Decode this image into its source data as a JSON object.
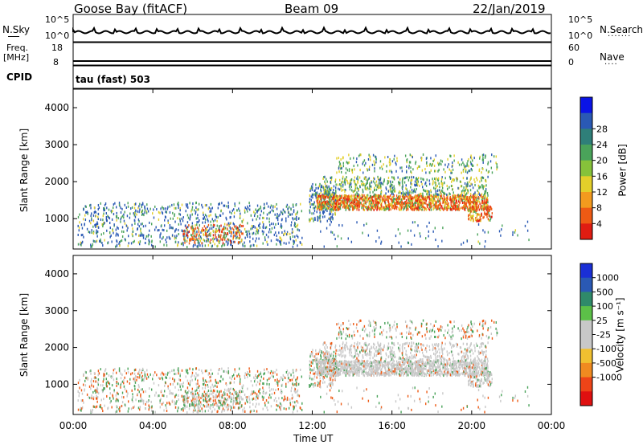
{
  "header": {
    "station": "Goose Bay (fitACF)",
    "beam": "Beam 09",
    "date": "22/Jan/2019"
  },
  "nsky": {
    "label": "N.Sky",
    "tick_top": "10^5",
    "tick_bottom": "10^0",
    "right_top": "10^5",
    "right_bottom": "10^0",
    "right_label": "N.Search"
  },
  "freq": {
    "label_line1": "Freq.",
    "label_line2": "[MHz]",
    "tick_top": "18",
    "tick_bottom": "8",
    "right_top": "60",
    "right_bottom": "0",
    "right_label": "Nave"
  },
  "cpid": {
    "label": "CPID",
    "value": "tau (fast) 503"
  },
  "time_axis": {
    "label": "Time UT",
    "ticks": [
      "00:00",
      "04:00",
      "08:00",
      "12:00",
      "16:00",
      "20:00",
      "00:00"
    ]
  },
  "chart_data": [
    {
      "type": "heatmap",
      "ylabel": "Slant Range [km]",
      "yticks": [
        1000,
        2000,
        3000,
        4000
      ],
      "ylim": [
        180,
        4500
      ],
      "xlim_hours": [
        0,
        24
      ],
      "colorbar": {
        "label": "Power [dB]",
        "ticks": [
          "4",
          "8",
          "12",
          "16",
          "20",
          "24",
          "28"
        ],
        "colors": [
          "#0a14e6",
          "#2a59b4",
          "#2f7f79",
          "#4aa35a",
          "#86c23a",
          "#e3cf2a",
          "#f39a1e",
          "#ee5a14",
          "#e01c12"
        ]
      },
      "colors": {
        "weak": "#2a59b4",
        "mid": "#4aa35a",
        "strong": "#ee5a14",
        "peak": "#e01c12",
        "yellow": "#e3cf2a"
      }
    },
    {
      "type": "heatmap",
      "ylabel": "Slant Range [km]",
      "yticks": [
        1000,
        2000,
        3000,
        4000
      ],
      "ylim": [
        180,
        4500
      ],
      "xlim_hours": [
        0,
        24
      ],
      "colorbar": {
        "label": "Velocity [m s⁻¹]",
        "ticks": [
          "1000",
          "500",
          "100",
          "25",
          "-25",
          "-100",
          "-500",
          "-1000"
        ],
        "colors": [
          "#1a2fd6",
          "#2a59b4",
          "#2f8a6a",
          "#5cc048",
          "#c8c8c8",
          "#c8c8c8",
          "#f0c030",
          "#f08a20",
          "#ee4418",
          "#e01010"
        ]
      },
      "colors": {
        "ground": "#c8c8c8",
        "pos": "#4aa35a",
        "neg": "#ee5a14"
      }
    }
  ]
}
